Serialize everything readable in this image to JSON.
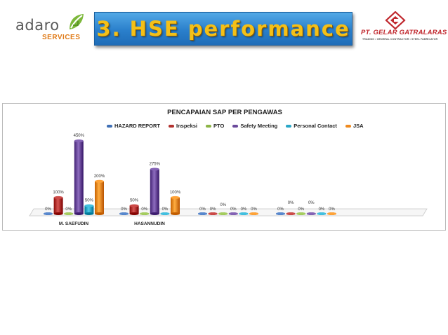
{
  "header": {
    "logo_left_word": "adaro",
    "logo_left_sub": "SERVICES",
    "title": "3. HSE performance",
    "logo_right_name": "PT. GELAR GATRALARAS",
    "logo_right_tagline": "TRADING • GENERAL CONTRACTOR • STEEL FABRICATOR"
  },
  "colors": {
    "banner_blue": "#2a7fcb",
    "title_gold": "#f4c018",
    "logo_orange": "#e07a16",
    "logo_red": "#c0272d"
  },
  "chart_data": {
    "type": "bar",
    "title": "PENCAPAIAN SAP PER PENGAWAS",
    "legend_position": "top",
    "grid": false,
    "style": "3d-cylinder",
    "categories": [
      "M. SAEFUDIN",
      "HASANNUDIN",
      "",
      ""
    ],
    "ylim": [
      0,
      450
    ],
    "series": [
      {
        "name": "HAZARD REPORT",
        "color": "#3f6fb5",
        "values": [
          0,
          0,
          0,
          0
        ],
        "labels": [
          "0%",
          "0%",
          "0%",
          "0%"
        ]
      },
      {
        "name": "Inspeksi",
        "color": "#b3322f",
        "values": [
          100,
          50,
          0,
          0
        ],
        "labels": [
          "100%",
          "50%",
          "0%",
          "0%"
        ]
      },
      {
        "name": "PTO",
        "color": "#8cb446",
        "values": [
          0,
          0,
          0,
          0
        ],
        "labels": [
          "0%",
          "0%",
          "0%",
          "0%"
        ]
      },
      {
        "name": "Safety Meeting",
        "color": "#6b4a9c",
        "values": [
          450,
          275,
          0,
          0
        ],
        "labels": [
          "450%",
          "275%",
          "0%",
          "0%"
        ]
      },
      {
        "name": "Personal Contact",
        "color": "#2aa7c7",
        "values": [
          50,
          0,
          0,
          0
        ],
        "labels": [
          "50%",
          "0%",
          "0%",
          "0%"
        ]
      },
      {
        "name": "JSA",
        "color": "#ef8a1e",
        "values": [
          200,
          100,
          0,
          0
        ],
        "labels": [
          "200%",
          "100%",
          "0%",
          "0%"
        ]
      }
    ]
  }
}
